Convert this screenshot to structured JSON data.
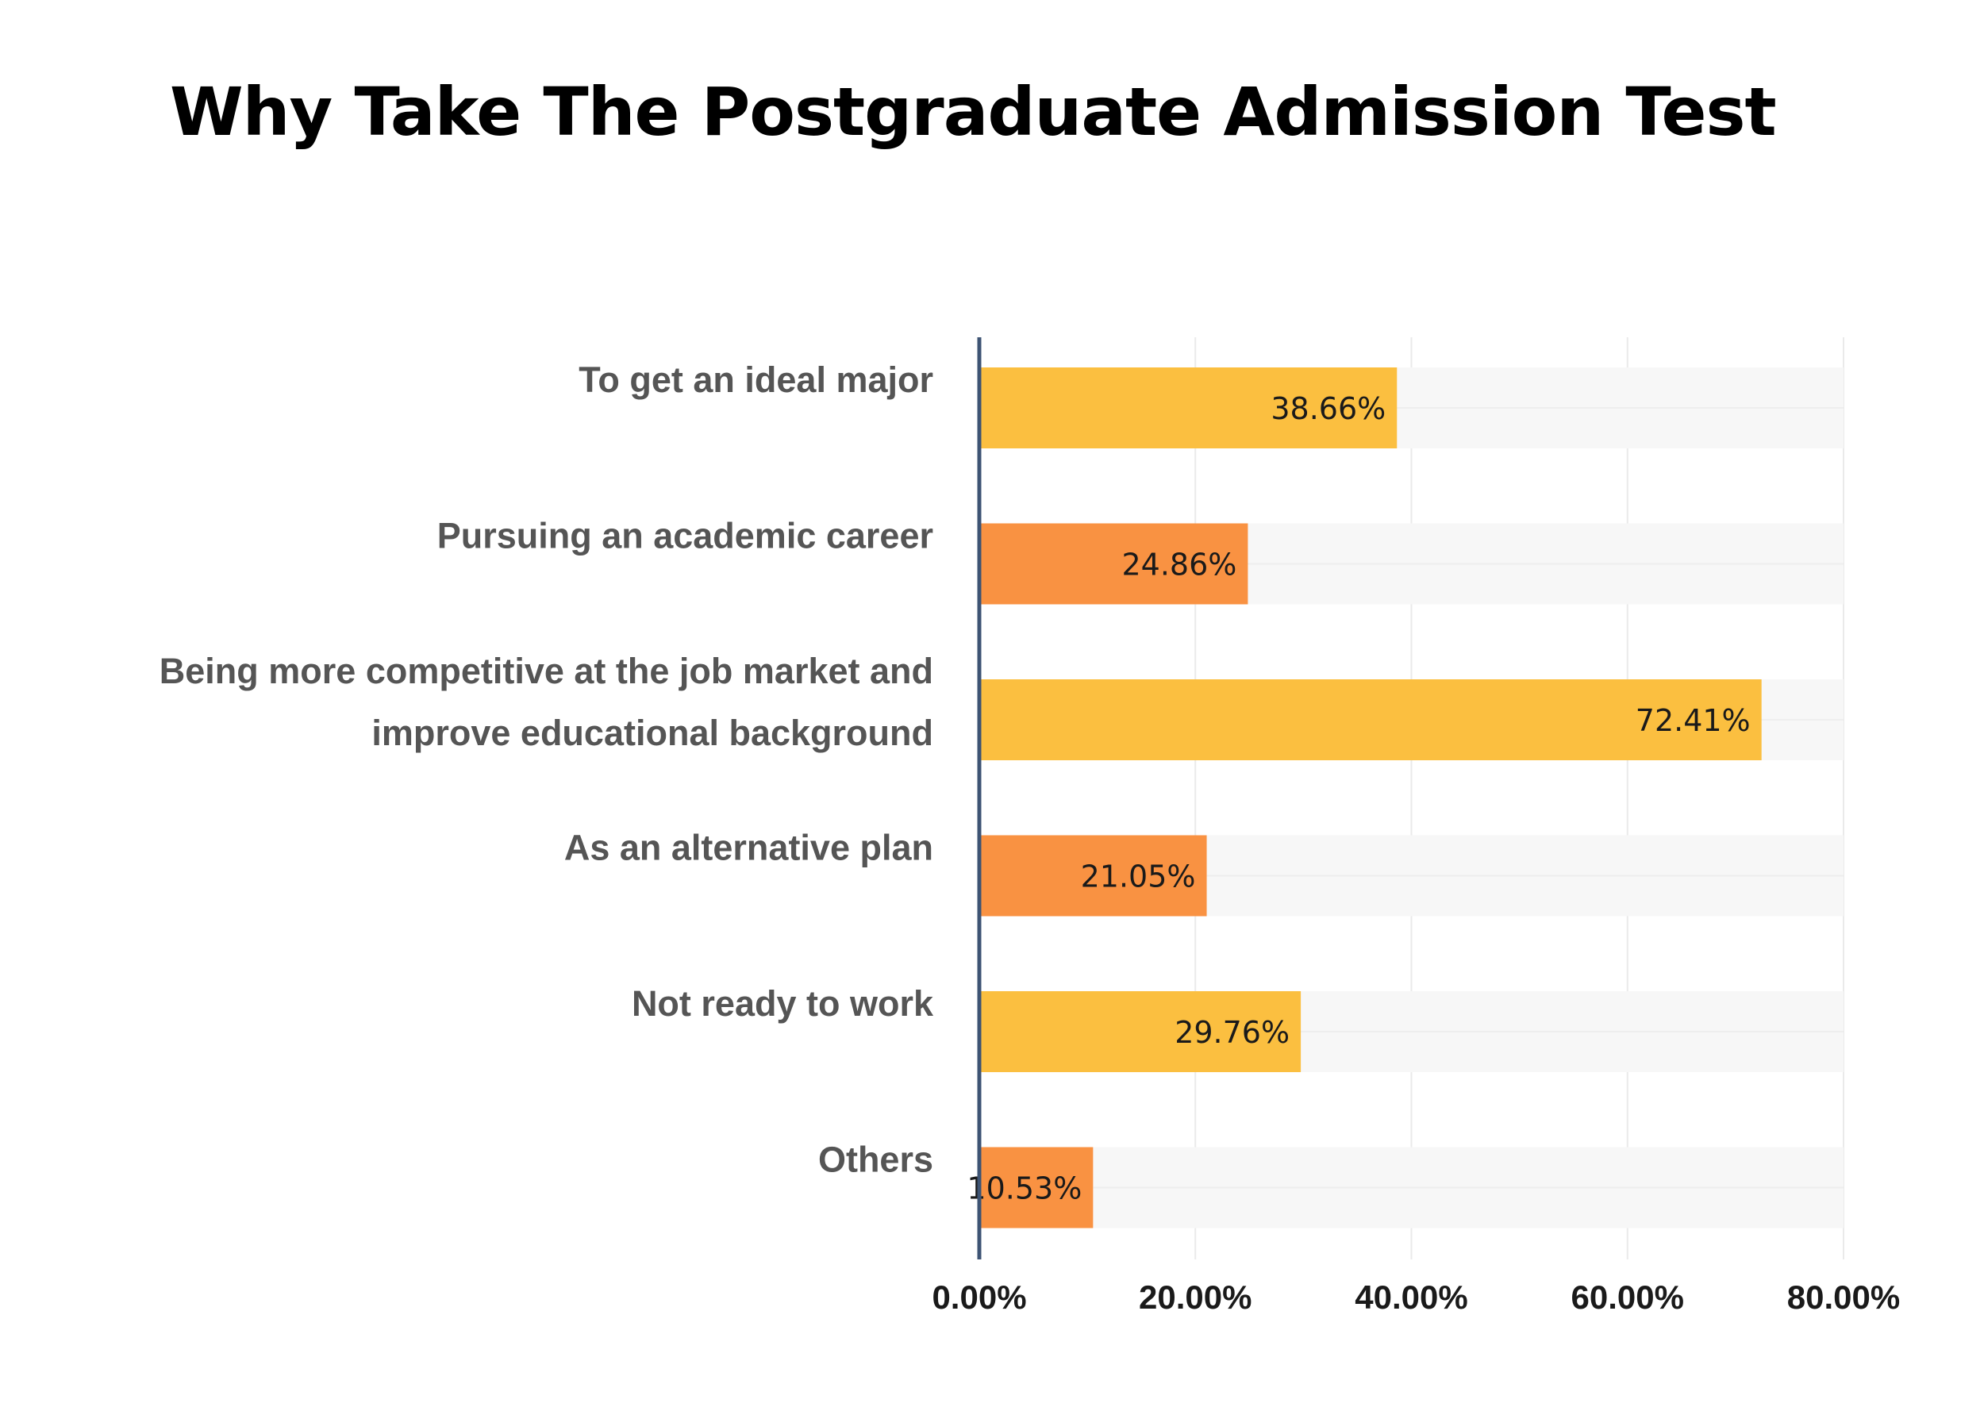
{
  "title": "Why Take The Postgraduate Admission Test",
  "colors": {
    "yellow": "#FBBF40",
    "orange": "#F99242",
    "track": "#F7F7F7",
    "axis": "#3E5474",
    "grid": "#EAEAEA",
    "label": "#555555"
  },
  "chart_data": {
    "type": "bar",
    "orientation": "horizontal",
    "categories": [
      [
        "To get an ideal major"
      ],
      [
        "Pursuing an academic career"
      ],
      [
        "Being more competitive at the job market and",
        "improve educational background"
      ],
      [
        "As an alternative plan"
      ],
      [
        "Not ready to work"
      ],
      [
        "Others"
      ]
    ],
    "values": [
      38.66,
      24.86,
      72.41,
      21.05,
      29.76,
      10.53
    ],
    "value_labels": [
      "38.66%",
      "24.86%",
      "72.41%",
      "21.05%",
      "29.76%",
      "10.53%"
    ],
    "bar_colors": [
      "yellow",
      "orange",
      "yellow",
      "orange",
      "yellow",
      "orange"
    ],
    "xlim": [
      0,
      80
    ],
    "ticks": [
      0,
      20,
      40,
      60,
      80
    ],
    "tick_labels": [
      "0.00%",
      "20.00%",
      "40.00%",
      "60.00%",
      "80.00%"
    ],
    "grid": true,
    "background_track": true
  }
}
